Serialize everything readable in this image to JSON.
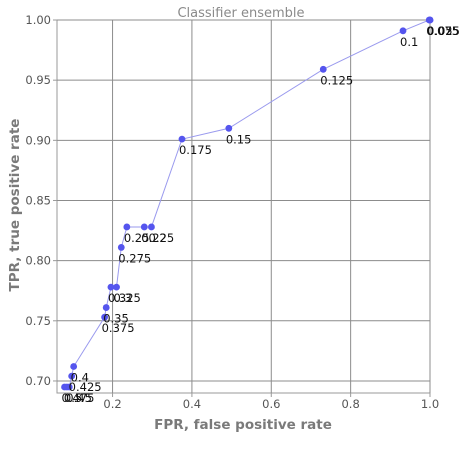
{
  "chart_data": {
    "type": "line",
    "title": "Classifier ensemble",
    "xlabel": "FPR, false positive rate",
    "ylabel": "TPR, true positive rate",
    "xlim": [
      0.06,
      1.0
    ],
    "ylim": [
      0.69,
      1.0
    ],
    "grid": true,
    "x_ticks": [
      0.2,
      0.4,
      0.6,
      0.8,
      1.0
    ],
    "x_tick_labels": [
      "0.2",
      "0.4",
      "0.6",
      "0.8",
      "1.0"
    ],
    "y_ticks": [
      0.7,
      0.75,
      0.8,
      0.85,
      0.9,
      0.95,
      1.0
    ],
    "y_tick_labels": [
      "0.70",
      "0.75",
      "0.80",
      "0.85",
      "0.90",
      "0.95",
      "1.00"
    ],
    "line_color": "#9a9aee",
    "point_color": "#5555ee",
    "series": [
      {
        "points": [
          {
            "x": 0.079,
            "y": 0.695,
            "label": "0.475"
          },
          {
            "x": 0.085,
            "y": 0.695,
            "label": "0.5"
          },
          {
            "x": 0.091,
            "y": 0.695,
            "label": "0.45"
          },
          {
            "x": 0.097,
            "y": 0.704,
            "label": "0.425"
          },
          {
            "x": 0.102,
            "y": 0.712,
            "label": "0.4"
          },
          {
            "x": 0.18,
            "y": 0.753,
            "label": "0.375"
          },
          {
            "x": 0.184,
            "y": 0.761,
            "label": "0.35"
          },
          {
            "x": 0.196,
            "y": 0.778,
            "label": "0.325"
          },
          {
            "x": 0.21,
            "y": 0.778,
            "label": "0.3"
          },
          {
            "x": 0.222,
            "y": 0.811,
            "label": "0.275"
          },
          {
            "x": 0.236,
            "y": 0.828,
            "label": "0.25"
          },
          {
            "x": 0.28,
            "y": 0.828,
            "label": "0.225"
          },
          {
            "x": 0.298,
            "y": 0.828,
            "label": "0.2"
          },
          {
            "x": 0.375,
            "y": 0.901,
            "label": "0.175"
          },
          {
            "x": 0.493,
            "y": 0.91,
            "label": "0.15"
          },
          {
            "x": 0.731,
            "y": 0.959,
            "label": "0.125"
          },
          {
            "x": 0.932,
            "y": 0.991,
            "label": "0.1"
          },
          {
            "x": 0.998,
            "y": 1.0,
            "label": "0.075"
          },
          {
            "x": 1.0,
            "y": 1.0,
            "label": "0.05"
          },
          {
            "x": 1.0,
            "y": 1.0,
            "label": "0.025"
          }
        ]
      }
    ]
  }
}
